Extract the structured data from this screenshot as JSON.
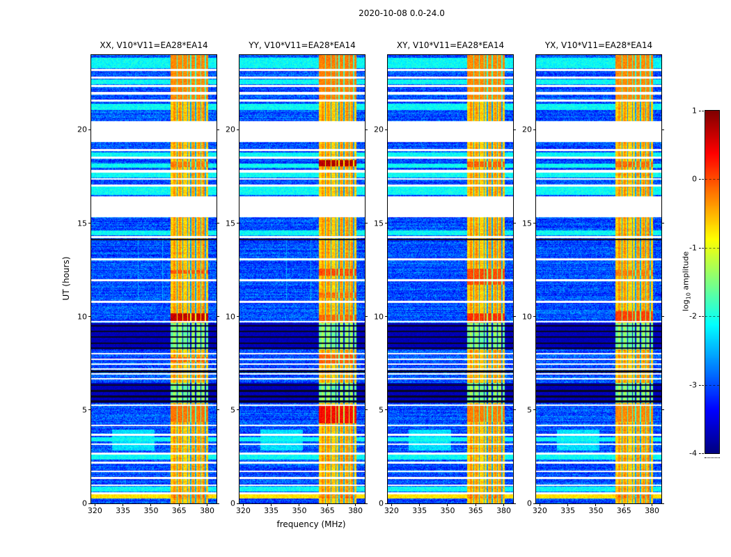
{
  "chart_data": {
    "type": "heatmap",
    "figure_title": "2020-10-08 0.0-24.0",
    "xlabel": "frequency (MHz)",
    "ylabel": "UT (hours)",
    "xlim": [
      318,
      385
    ],
    "ylim": [
      0,
      24
    ],
    "xticks": [
      320,
      335,
      350,
      365,
      380
    ],
    "yticks": [
      0,
      5,
      10,
      15,
      20
    ],
    "panels": [
      {
        "id": "XX",
        "title": "XX, V10*V11=EA28*EA14"
      },
      {
        "id": "YY",
        "title": "YY, V10*V11=EA28*EA14"
      },
      {
        "id": "XY",
        "title": "XY, V10*V11=EA28*EA14"
      },
      {
        "id": "YX",
        "title": "YX, V10*V11=EA28*EA14"
      }
    ],
    "colorbar": {
      "label": "log10 amplitude",
      "label_parts": {
        "prefix": "log",
        "sub": "10",
        "suffix": " amplitude"
      },
      "ticks": [
        1,
        0,
        -1,
        -2,
        -3,
        -4
      ],
      "vmin": -4,
      "vmax": 1,
      "colormap": "jet"
    },
    "spectrogram_model": {
      "band": {
        "freqs": [
          360.5,
          380.6
        ],
        "base": -0.85,
        "bright": [
          362.5,
          365.5,
          372.5,
          375.5,
          378.2
        ],
        "bright_halfwidth": 0.6,
        "bright_amp": -0.55,
        "notches": [
          364.0,
          366.9,
          369.6,
          371.2,
          373.9,
          376.6,
          379.1
        ],
        "notch_halfwidth": 0.3,
        "notch_amp": -2.8
      },
      "white_gaps": [
        [
          23.14,
          23.26
        ],
        [
          22.74,
          22.86
        ],
        [
          22.29,
          22.41
        ],
        [
          21.89,
          22.01
        ],
        [
          21.49,
          21.61
        ],
        [
          19.35,
          20.45
        ],
        [
          18.84,
          18.96
        ],
        [
          18.46,
          18.56
        ],
        [
          17.72,
          17.84
        ],
        [
          17.32,
          17.42
        ],
        [
          16.96,
          17.06
        ],
        [
          15.3,
          16.45
        ],
        [
          14.19,
          14.31
        ],
        [
          13.0,
          13.12
        ],
        [
          11.89,
          12.01
        ],
        [
          10.74,
          10.86
        ],
        [
          9.68,
          9.76
        ],
        [
          7.96,
          8.04
        ],
        [
          7.68,
          7.76
        ],
        [
          7.42,
          7.5
        ],
        [
          7.16,
          7.24
        ],
        [
          6.9,
          6.98
        ],
        [
          6.62,
          6.7
        ],
        [
          5.2,
          5.28
        ],
        [
          4.12,
          4.22
        ],
        [
          3.62,
          3.72
        ],
        [
          3.12,
          3.22
        ],
        [
          2.62,
          2.72
        ],
        [
          2.12,
          2.22
        ],
        [
          1.66,
          1.76
        ],
        [
          1.3,
          1.4
        ],
        [
          0.92,
          1.02
        ],
        [
          0.48,
          0.58
        ]
      ],
      "cyan_rows": [
        [
          23.3,
          23.85
        ],
        [
          22.45,
          22.7
        ],
        [
          21.05,
          21.4
        ],
        [
          18.56,
          18.8
        ],
        [
          17.95,
          18.2
        ],
        [
          17.44,
          17.7
        ],
        [
          16.5,
          16.94
        ],
        [
          14.33,
          14.6
        ],
        [
          3.3,
          3.55
        ],
        [
          2.35,
          2.6
        ],
        [
          0.62,
          0.88
        ]
      ],
      "yellow_rows": [
        [
          0.25,
          0.48
        ]
      ],
      "dark_regions": [
        [
          8.25,
          9.65
        ],
        [
          5.35,
          6.45
        ]
      ],
      "black_lines": [
        [
          9.46,
          9.54
        ],
        [
          9.16,
          9.24
        ],
        [
          8.86,
          8.94
        ],
        [
          8.54,
          8.62
        ],
        [
          8.28,
          8.36
        ],
        [
          6.28,
          6.36
        ],
        [
          5.98,
          6.06
        ],
        [
          5.68,
          5.76
        ],
        [
          5.42,
          5.5
        ],
        [
          14.08,
          14.16
        ],
        [
          7.02,
          7.1
        ]
      ],
      "blob": {
        "hours": [
          2.85,
          3.95
        ],
        "freqs": [
          329,
          352
        ]
      },
      "vlines": {
        "freqs": [
          343.2,
          356.1
        ],
        "hours": [
          10.9,
          14.2
        ]
      },
      "hot_rows": {
        "XX": [
          [
            9.78,
            10.16,
            0.45
          ],
          [
            12.28,
            12.5,
            -0.25
          ],
          [
            7.55,
            7.82,
            -0.35
          ],
          [
            4.35,
            5.25,
            -0.4
          ],
          [
            21.6,
            24.0,
            -0.5
          ],
          [
            18.0,
            18.3,
            -0.45
          ]
        ],
        "YY": [
          [
            18.02,
            18.38,
            0.55
          ],
          [
            4.3,
            5.3,
            0.15
          ],
          [
            12.18,
            12.55,
            -0.2
          ],
          [
            7.5,
            8.0,
            -0.3
          ],
          [
            21.6,
            24.0,
            -0.45
          ],
          [
            9.78,
            10.1,
            -0.35
          ],
          [
            11.0,
            11.3,
            -0.4
          ]
        ],
        "XY": [
          [
            9.78,
            10.16,
            -0.05
          ],
          [
            11.7,
            12.55,
            -0.2
          ],
          [
            18.0,
            18.3,
            -0.3
          ],
          [
            21.6,
            24.0,
            -0.5
          ],
          [
            4.35,
            5.3,
            -0.45
          ]
        ],
        "YX": [
          [
            9.78,
            10.3,
            -0.15
          ],
          [
            18.0,
            18.3,
            -0.35
          ],
          [
            21.6,
            24.0,
            -0.5
          ],
          [
            12.2,
            12.5,
            -0.45
          ],
          [
            4.35,
            5.25,
            -0.5
          ]
        ]
      }
    }
  }
}
